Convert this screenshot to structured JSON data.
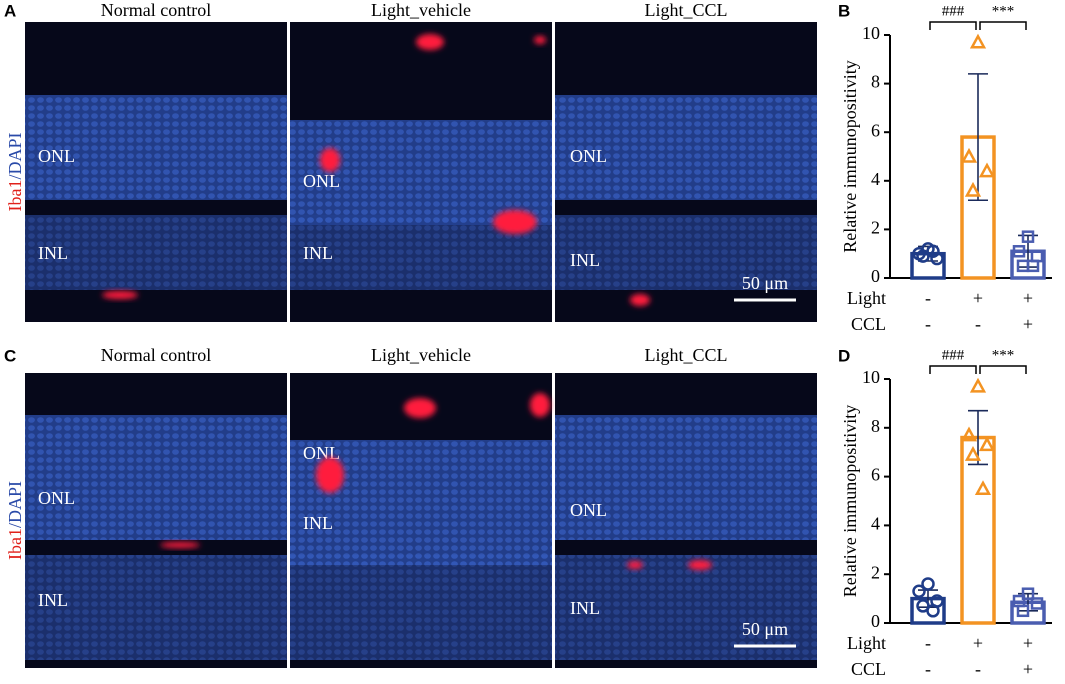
{
  "figure": {
    "panels": [
      {
        "label": "A",
        "columns": [
          "Normal control",
          "Light_vehicle",
          "Light_CCL"
        ],
        "stain": [
          "Iba1",
          "/DAPI"
        ],
        "layers": [
          [
            "ONL",
            "INL"
          ],
          [
            "ONL",
            "INL"
          ],
          [
            "ONL",
            "INL"
          ]
        ],
        "scale_bar": "50 μm"
      },
      {
        "label": "C",
        "columns": [
          "Normal control",
          "Light_vehicle",
          "Light_CCL"
        ],
        "stain": [
          "Iba1",
          "/DAPI"
        ],
        "layers": [
          [
            "ONL",
            "INL"
          ],
          [
            "ONL",
            "INL"
          ],
          [
            "ONL",
            "INL"
          ]
        ],
        "scale_bar": "50 μm"
      }
    ]
  },
  "chart_data": [
    {
      "type": "bar",
      "label": "B",
      "ylabel": "Relative immunopositivity",
      "ylim": [
        0,
        10
      ],
      "yticks": [
        0,
        2,
        4,
        6,
        8,
        10
      ],
      "groups": [
        {
          "mean": 1.0,
          "sd": 0.3,
          "points": [
            1.2,
            1.0,
            0.8,
            0.9,
            1.1
          ],
          "color": "#1f3c88",
          "marker": "circle"
        },
        {
          "mean": 5.8,
          "sd": 2.6,
          "points": [
            9.7,
            5.0,
            4.4,
            3.6
          ],
          "color": "#f39322",
          "marker": "triangle"
        },
        {
          "mean": 1.1,
          "sd": 0.65,
          "points": [
            1.7,
            1.1,
            0.9,
            0.5,
            0.5
          ],
          "color": "#4a5db0",
          "marker": "square"
        }
      ],
      "x_rows": [
        {
          "name": "Light",
          "values": [
            "-",
            "+",
            "+"
          ]
        },
        {
          "name": "CCL",
          "values": [
            "-",
            "-",
            "+"
          ]
        }
      ],
      "annotations": [
        "###",
        "***"
      ]
    },
    {
      "type": "bar",
      "label": "D",
      "ylabel": "Relative immunopositivity",
      "ylim": [
        0,
        10
      ],
      "yticks": [
        0,
        2,
        4,
        6,
        8,
        10
      ],
      "groups": [
        {
          "mean": 1.0,
          "sd": 0.35,
          "points": [
            1.6,
            1.3,
            0.9,
            0.7,
            0.5
          ],
          "color": "#1f3c88",
          "marker": "circle"
        },
        {
          "mean": 7.6,
          "sd": 1.1,
          "points": [
            9.7,
            7.7,
            7.3,
            6.9,
            5.5
          ],
          "color": "#f39322",
          "marker": "triangle"
        },
        {
          "mean": 0.85,
          "sd": 0.35,
          "points": [
            1.2,
            0.9,
            0.8,
            0.5
          ],
          "color": "#4a5db0",
          "marker": "square"
        }
      ],
      "x_rows": [
        {
          "name": "Light",
          "values": [
            "-",
            "+",
            "+"
          ]
        },
        {
          "name": "CCL",
          "values": [
            "-",
            "-",
            "+"
          ]
        }
      ],
      "annotations": [
        "###",
        "***"
      ]
    }
  ]
}
